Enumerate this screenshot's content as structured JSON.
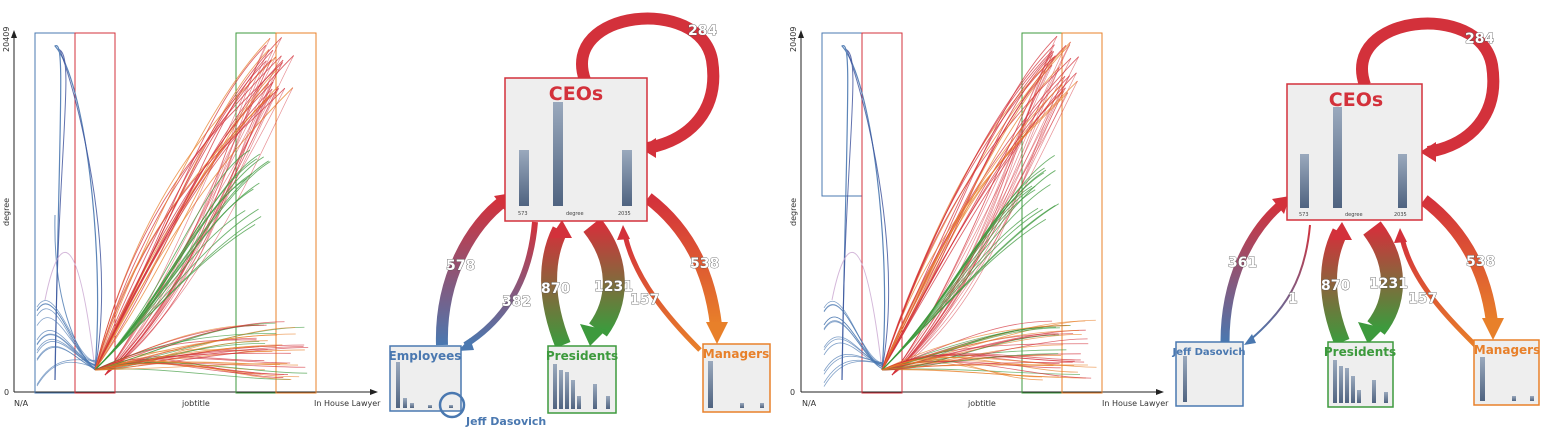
{
  "panels": [
    {
      "plot": {
        "y_top_tick": "20409",
        "y_zero": "0",
        "y_label": "degree",
        "x_left": "N/A",
        "x_mid": "jobtitle",
        "x_right": "In House Lawyer"
      },
      "graph": {
        "ceo_title": "CEOs",
        "ceo_ticks": [
          "573",
          "degree",
          "2035"
        ],
        "self_loop": "284",
        "left_title": "Employees",
        "mid_title": "Presidents",
        "right_title": "Managers",
        "flows": [
          "578",
          "382",
          "870",
          "1231",
          "157",
          "538"
        ],
        "annotation": "Jeff Dasovich"
      }
    },
    {
      "plot": {
        "y_top_tick": "20409",
        "y_zero": "0",
        "y_label": "degree",
        "x_left": "N/A",
        "x_mid": "jobtitle",
        "x_right": "In House Lawyer"
      },
      "graph": {
        "ceo_title": "CEOs",
        "ceo_ticks": [
          "573",
          "degree",
          "2035"
        ],
        "self_loop": "284",
        "left_title": "Jeff Dasovich",
        "mid_title": "Presidents",
        "right_title": "Managers",
        "flows": [
          "361",
          "1",
          "870",
          "1231",
          "157",
          "538"
        ],
        "annotation": ""
      }
    }
  ],
  "colors": {
    "ceo": "#d3313b",
    "employees": "#4a78b0",
    "presidents": "#3d9a3d",
    "managers": "#e8802a",
    "box_fill": "#eeeeee",
    "bar": "#5b6f8a"
  }
}
